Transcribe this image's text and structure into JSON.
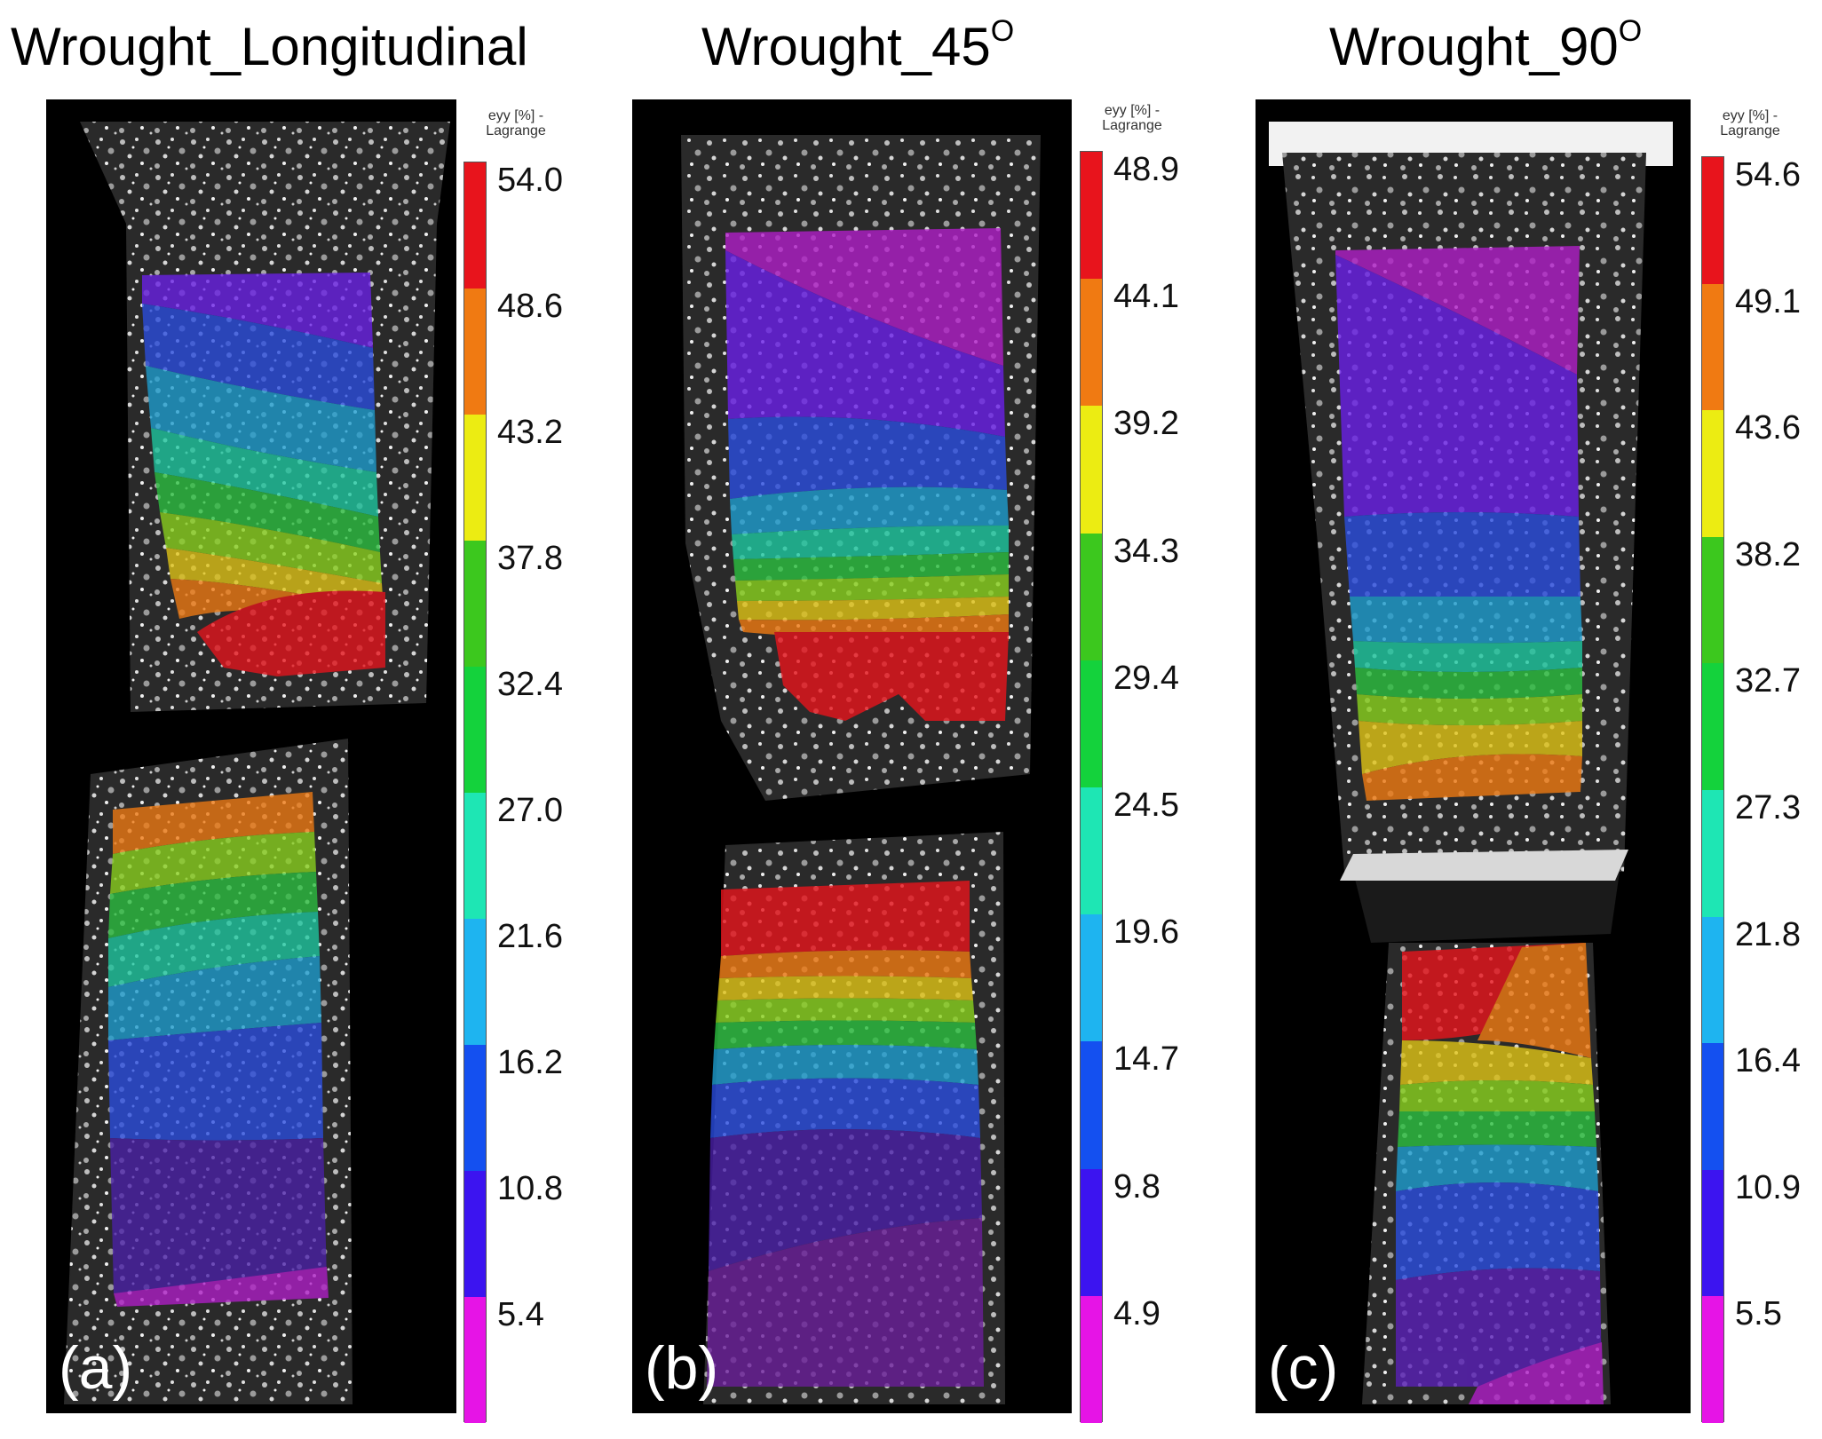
{
  "panels": [
    {
      "title": "Wrought_Longitudinal",
      "title_sup": "",
      "letter": "(a)",
      "legend_title": "eyy [%] -\nLagrange",
      "ticks": [
        "54.0",
        "48.6",
        "43.2",
        "37.8",
        "32.4",
        "27.0",
        "21.6",
        "16.2",
        "10.8",
        "5.4"
      ]
    },
    {
      "title": "Wrought_45",
      "title_sup": "O",
      "letter": "(b)",
      "legend_title": "eyy [%] -\nLagrange",
      "ticks": [
        "48.9",
        "44.1",
        "39.2",
        "34.3",
        "29.4",
        "24.5",
        "19.6",
        "14.7",
        "9.8",
        "4.9"
      ]
    },
    {
      "title": "Wrought_90",
      "title_sup": "O",
      "letter": "(c)",
      "legend_title": "eyy [%] -\nLagrange",
      "ticks": [
        "54.6",
        "49.1",
        "43.6",
        "38.2",
        "32.7",
        "27.3",
        "21.8",
        "16.4",
        "10.9",
        "5.5"
      ]
    }
  ],
  "colormap": [
    "#e8141c",
    "#f07a12",
    "#ecec12",
    "#3cc81e",
    "#14d23c",
    "#1ee6b4",
    "#1eb4f0",
    "#1450f0",
    "#3c14f0",
    "#e614e6"
  ]
}
